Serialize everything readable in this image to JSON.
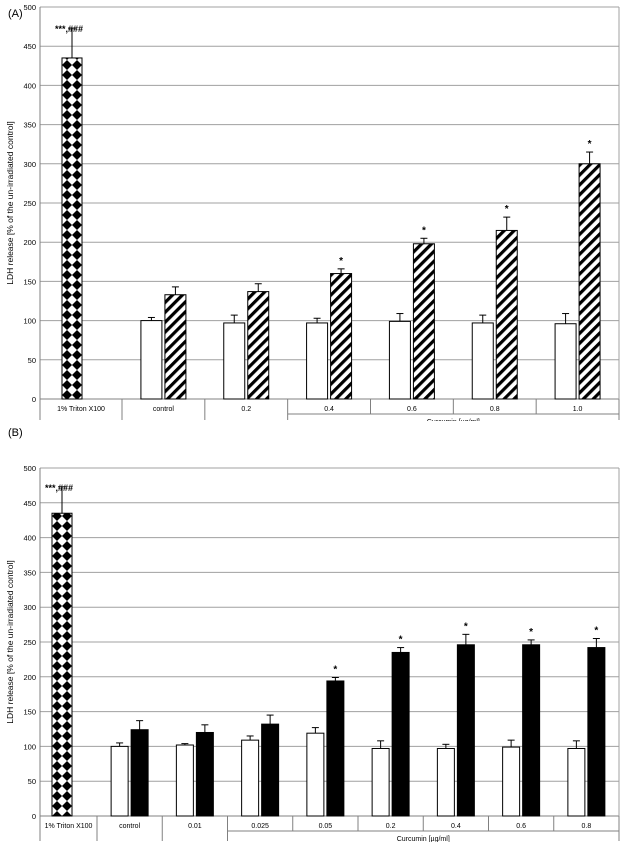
{
  "colors": {
    "white_bar": "#ffffff",
    "black_bar": "#000000",
    "grid": "#a0a0a0",
    "axis": "#808080"
  },
  "chart_data": [
    {
      "panel_label": "(A)",
      "type": "bar",
      "pattern": "diagonal-hatch",
      "ylabel": "LDH release [% of the un-irradiated control]",
      "xgroup_label": "Curcumin [µg/ml]",
      "ylim": [
        0,
        500
      ],
      "yticks": [
        "0",
        "50",
        "100",
        "150",
        "200",
        "250",
        "300",
        "350",
        "400",
        "450",
        "500"
      ],
      "grid": true,
      "triton": {
        "label": "1% Triton X100",
        "value": 435,
        "error": 38,
        "annotation": "***,###"
      },
      "categories": [
        "control",
        "0.2",
        "0.4",
        "0.6",
        "0.8",
        "1.0"
      ],
      "series": [
        {
          "fill": "white",
          "values": [
            100,
            97,
            97,
            99,
            97,
            96
          ],
          "errors": [
            4,
            10,
            6,
            10,
            10,
            13
          ]
        },
        {
          "fill": "hatch",
          "values": [
            133,
            137,
            160,
            198,
            215,
            300
          ],
          "errors": [
            10,
            10,
            6,
            7,
            17,
            15
          ],
          "annotations": [
            "",
            "",
            "*",
            "*",
            "*",
            "*"
          ]
        }
      ]
    },
    {
      "panel_label": "(B)",
      "type": "bar",
      "pattern": "solid-black",
      "ylabel": "LDH release [% of the un-irradiated control]",
      "xgroup_label": "Curcumin [µg/ml]",
      "ylim": [
        0,
        500
      ],
      "yticks": [
        "0",
        "50",
        "100",
        "150",
        "200",
        "250",
        "300",
        "350",
        "400",
        "450",
        "500"
      ],
      "grid": true,
      "triton": {
        "label": "1% Triton X100",
        "value": 435,
        "error": 38,
        "annotation": "***,###"
      },
      "categories": [
        "control",
        "0.01",
        "0.025",
        "0.05",
        "0.2",
        "0.4",
        "0.6",
        "0.8"
      ],
      "series": [
        {
          "fill": "white",
          "values": [
            100,
            102,
            109,
            119,
            97,
            97,
            99,
            97
          ],
          "errors": [
            5,
            2,
            6,
            8,
            11,
            6,
            10,
            11
          ]
        },
        {
          "fill": "black",
          "values": [
            124,
            120,
            132,
            194,
            235,
            246,
            246,
            242
          ],
          "errors": [
            13,
            11,
            13,
            5,
            7,
            15,
            7,
            13
          ],
          "annotations": [
            "",
            "",
            "",
            "*",
            "*",
            "*",
            "*",
            "*"
          ]
        }
      ]
    }
  ]
}
